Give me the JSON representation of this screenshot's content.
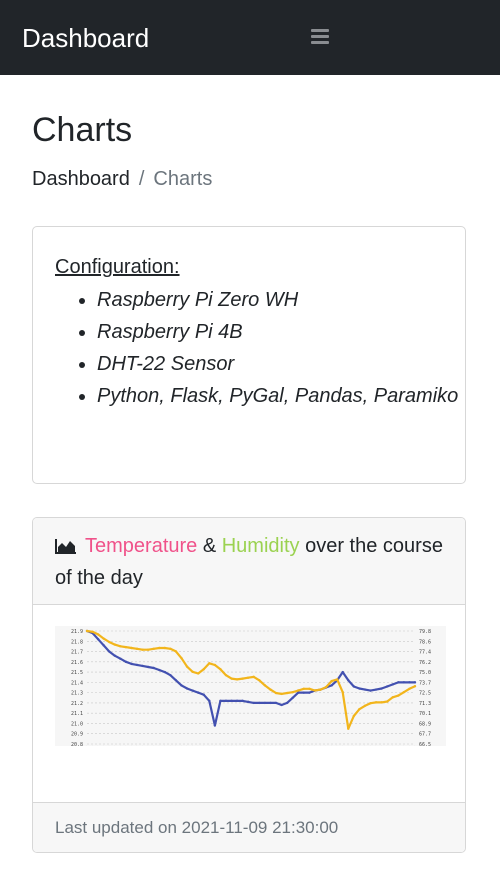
{
  "navbar": {
    "brand": "Dashboard",
    "menu_icon": "hamburger-menu-icon"
  },
  "page": {
    "title": "Charts"
  },
  "breadcrumb": {
    "home": "Dashboard",
    "separator": "/",
    "current": "Charts"
  },
  "config": {
    "title": "Configuration:",
    "items": [
      "Raspberry Pi Zero WH",
      "Raspberry Pi 4B",
      "DHT-22 Sensor",
      "Python, Flask, PyGal, Pandas, Paramiko"
    ]
  },
  "chart_card": {
    "icon": "area-chart-icon",
    "temperature": "Temperature",
    "amp": " & ",
    "humidity": "Humidity",
    "rest": " over the course of the day",
    "updated": "Last updated on 2021-11-09 21:30:00",
    "temperature_color": "#f0528a",
    "humidity_color": "#9bd251"
  },
  "chart_data": {
    "type": "line",
    "title": "",
    "y_left_ticks": [
      "21.9",
      "21.8",
      "21.7",
      "21.6",
      "21.5",
      "21.4",
      "21.3",
      "21.2",
      "21.1",
      "21.0",
      "20.9",
      "20.8"
    ],
    "y_right_ticks": [
      "79.8",
      "78.6",
      "77.4",
      "76.2",
      "75.0",
      "73.7",
      "72.5",
      "71.3",
      "70.1",
      "68.9",
      "67.7",
      "66.5"
    ],
    "ylim_left": [
      20.8,
      21.9
    ],
    "ylim_right": [
      66.5,
      79.8
    ],
    "x_count": 60,
    "grid": true,
    "series": [
      {
        "axis": "left",
        "color": "#4351b0",
        "values": [
          21.9,
          21.88,
          21.82,
          21.76,
          21.7,
          21.66,
          21.63,
          21.6,
          21.58,
          21.57,
          21.56,
          21.55,
          21.54,
          21.52,
          21.5,
          21.47,
          21.42,
          21.37,
          21.34,
          21.32,
          21.3,
          21.28,
          21.22,
          20.98,
          21.22,
          21.22,
          21.22,
          21.22,
          21.22,
          21.21,
          21.2,
          21.2,
          21.2,
          21.2,
          21.2,
          21.18,
          21.2,
          21.25,
          21.3,
          21.3,
          21.3,
          21.32,
          21.33,
          21.35,
          21.37,
          21.42,
          21.5,
          21.42,
          21.36,
          21.34,
          21.33,
          21.32,
          21.33,
          21.34,
          21.36,
          21.38,
          21.4,
          21.4,
          21.4,
          21.4
        ]
      },
      {
        "axis": "right",
        "color": "#f2b51c",
        "values": [
          79.8,
          79.7,
          79.4,
          78.9,
          78.5,
          78.2,
          78.0,
          77.9,
          77.8,
          77.7,
          77.6,
          77.6,
          77.7,
          77.8,
          77.8,
          77.7,
          77.4,
          76.6,
          75.6,
          75.0,
          74.8,
          75.3,
          76.0,
          75.8,
          75.3,
          74.6,
          74.2,
          74.1,
          74.2,
          74.3,
          74.4,
          74.0,
          73.4,
          72.9,
          72.5,
          72.4,
          72.5,
          72.6,
          72.8,
          73.0,
          73.0,
          72.8,
          72.9,
          73.2,
          73.9,
          74.1,
          72.6,
          68.3,
          69.8,
          70.6,
          71.0,
          71.3,
          71.4,
          71.4,
          71.5,
          72.0,
          72.2,
          72.6,
          73.0,
          73.3
        ]
      }
    ]
  }
}
